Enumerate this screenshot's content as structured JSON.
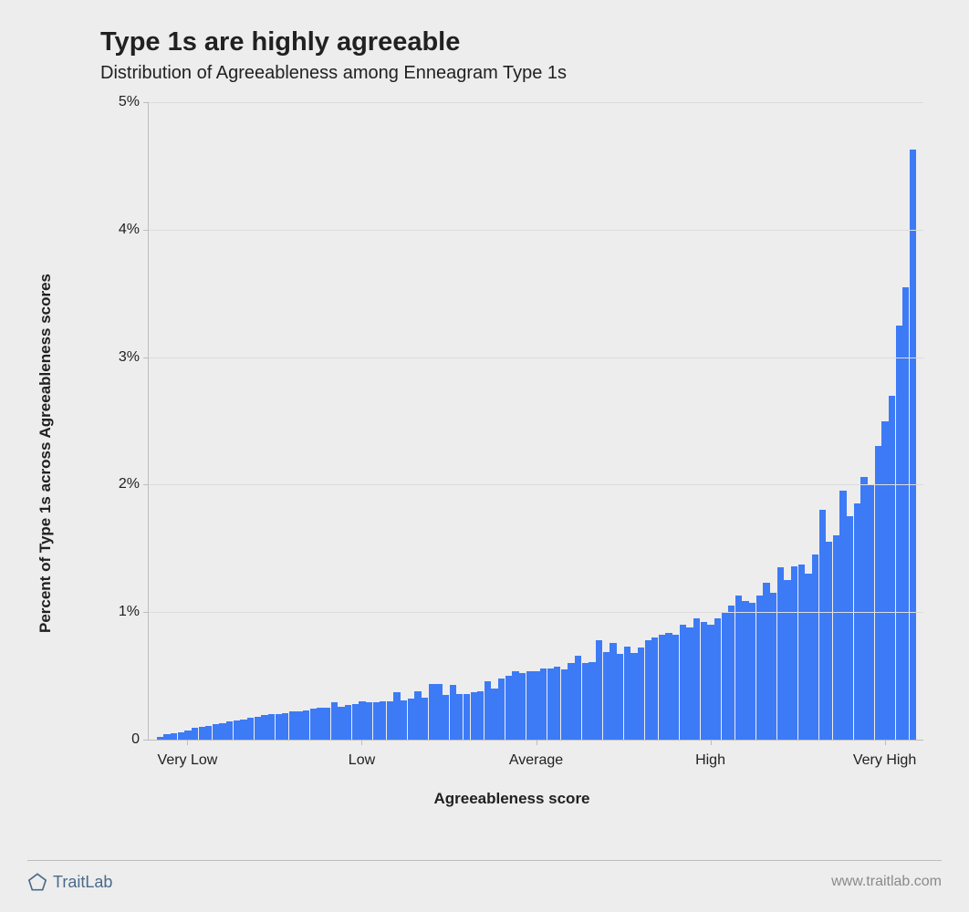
{
  "chart": {
    "type": "histogram",
    "title": "Type 1s are highly agreeable",
    "subtitle": "Distribution of Agreeableness among Enneagram Type 1s",
    "title_fontsize": 29,
    "subtitle_fontsize": 20,
    "title_fontweight": 700,
    "bar_color": "#3d7af6",
    "background_color": "#ededed",
    "grid_color": "#dcdcdc",
    "axis_line_color": "#bdbdbd",
    "text_color": "#212121",
    "y_axis": {
      "label": "Percent of Type 1s across Agreeableness scores",
      "min": 0,
      "max": 5.0,
      "ticks": [
        0,
        1,
        2,
        3,
        4,
        5
      ],
      "tick_labels": [
        "0",
        "1%",
        "2%",
        "3%",
        "4%",
        "5%"
      ]
    },
    "x_axis": {
      "label": "Agreeableness score",
      "tick_positions": [
        0.05,
        0.275,
        0.5,
        0.725,
        0.95
      ],
      "tick_labels": [
        "Very Low",
        "Low",
        "Average",
        "High",
        "Very High"
      ]
    },
    "values": [
      0.02,
      0.04,
      0.05,
      0.06,
      0.07,
      0.09,
      0.1,
      0.11,
      0.12,
      0.13,
      0.14,
      0.15,
      0.16,
      0.17,
      0.18,
      0.19,
      0.2,
      0.2,
      0.21,
      0.22,
      0.22,
      0.23,
      0.24,
      0.25,
      0.25,
      0.29,
      0.26,
      0.27,
      0.28,
      0.3,
      0.29,
      0.29,
      0.3,
      0.3,
      0.37,
      0.31,
      0.32,
      0.38,
      0.33,
      0.44,
      0.44,
      0.35,
      0.43,
      0.36,
      0.36,
      0.37,
      0.38,
      0.46,
      0.4,
      0.48,
      0.5,
      0.54,
      0.52,
      0.54,
      0.54,
      0.56,
      0.56,
      0.57,
      0.55,
      0.6,
      0.66,
      0.6,
      0.61,
      0.78,
      0.69,
      0.76,
      0.67,
      0.73,
      0.68,
      0.72,
      0.78,
      0.8,
      0.82,
      0.84,
      0.82,
      0.9,
      0.88,
      0.95,
      0.92,
      0.9,
      0.95,
      1.0,
      1.05,
      1.13,
      1.09,
      1.07,
      1.13,
      1.23,
      1.15,
      1.35,
      1.25,
      1.36,
      1.37,
      1.3,
      1.45,
      1.8,
      1.55,
      1.6,
      1.95,
      1.75,
      1.85,
      2.06,
      2.0,
      2.3,
      2.5,
      2.7,
      3.25,
      3.55,
      4.63
    ]
  },
  "footer": {
    "brand_name": "TraitLab",
    "brand_color": "#4a6a8a",
    "url": "www.traitlab.com",
    "url_color": "#8a8a8a"
  }
}
